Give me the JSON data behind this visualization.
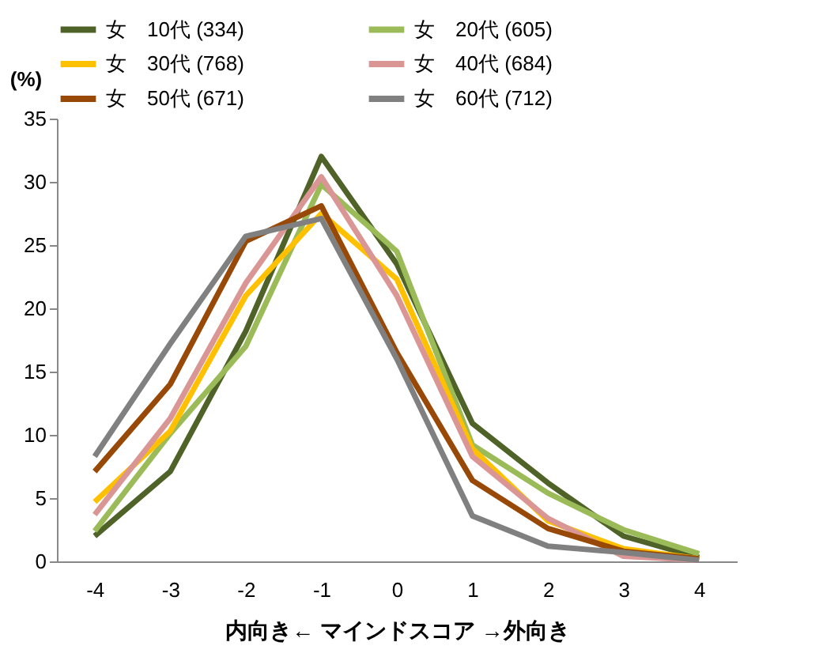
{
  "chart_data": {
    "type": "line",
    "xlabel": "内向き← マインドスコア →外向き",
    "ylabel": "(%)",
    "categories": [
      "-4",
      "-3",
      "-2",
      "-1",
      "0",
      "1",
      "2",
      "3",
      "4"
    ],
    "series": [
      {
        "name": "女　10代 (334)",
        "color": "#4f6228",
        "values": [
          2.0,
          7.1,
          18.2,
          32.0,
          23.5,
          10.9,
          6.2,
          2.0,
          0.3
        ]
      },
      {
        "name": "女　20代 (605)",
        "color": "#9bbb59",
        "values": [
          2.4,
          10.1,
          17.0,
          29.8,
          24.5,
          9.2,
          5.4,
          2.5,
          0.6
        ]
      },
      {
        "name": "女　30代 (768)",
        "color": "#ffc000",
        "values": [
          4.7,
          10.3,
          21.0,
          27.5,
          22.3,
          8.9,
          3.2,
          1.0,
          0.2
        ]
      },
      {
        "name": "女　40代 (684)",
        "color": "#d99694",
        "values": [
          3.7,
          11.3,
          22.0,
          30.4,
          21.0,
          8.3,
          3.4,
          0.4,
          0.1
        ]
      },
      {
        "name": "女　50代 (671)",
        "color": "#984807",
        "values": [
          7.1,
          14.0,
          25.3,
          28.1,
          16.5,
          6.4,
          2.6,
          0.8,
          0.2
        ]
      },
      {
        "name": "女　60代 (712)",
        "color": "#808080",
        "values": [
          8.3,
          17.2,
          25.7,
          27.1,
          16.0,
          3.6,
          1.2,
          0.7,
          0.1
        ]
      }
    ],
    "ylim": [
      0,
      35
    ],
    "yticks": [
      0,
      5,
      10,
      15,
      20,
      25,
      30,
      35
    ],
    "grid": false,
    "legend": "top",
    "marker": "none",
    "line_style": "solid"
  }
}
